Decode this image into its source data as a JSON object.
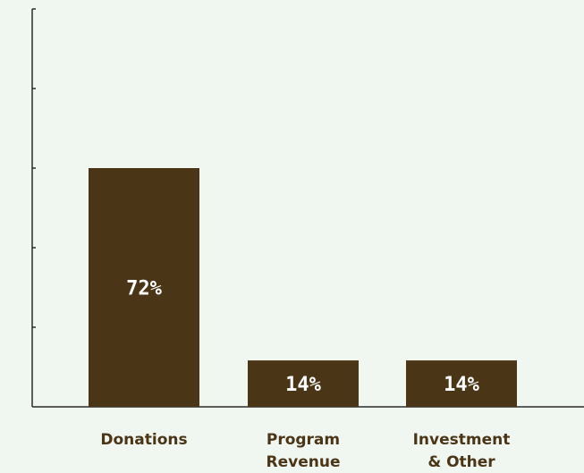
{
  "chart_data": {
    "type": "bar",
    "categories": [
      "Donations",
      "Program Revenue",
      "Investment & Other"
    ],
    "category_lines": [
      [
        "Donations"
      ],
      [
        "Program",
        "Revenue"
      ],
      [
        "Investment",
        "& Other"
      ]
    ],
    "values": [
      72,
      14,
      14
    ],
    "value_labels": [
      "72%",
      "14%",
      "14%"
    ],
    "ylim": [
      0,
      120
    ],
    "yticks": [
      0,
      24,
      48,
      72,
      96,
      120
    ],
    "ytick_labels_visible": false,
    "grid": false,
    "legend": "none",
    "title": "",
    "xlabel": "",
    "ylabel": ""
  },
  "colors": {
    "background": "#f0f7f1",
    "bar": "#4a3616",
    "bar_label": "#ffffff",
    "category_label": "#4a3616",
    "axis": "#2b2b2b"
  }
}
